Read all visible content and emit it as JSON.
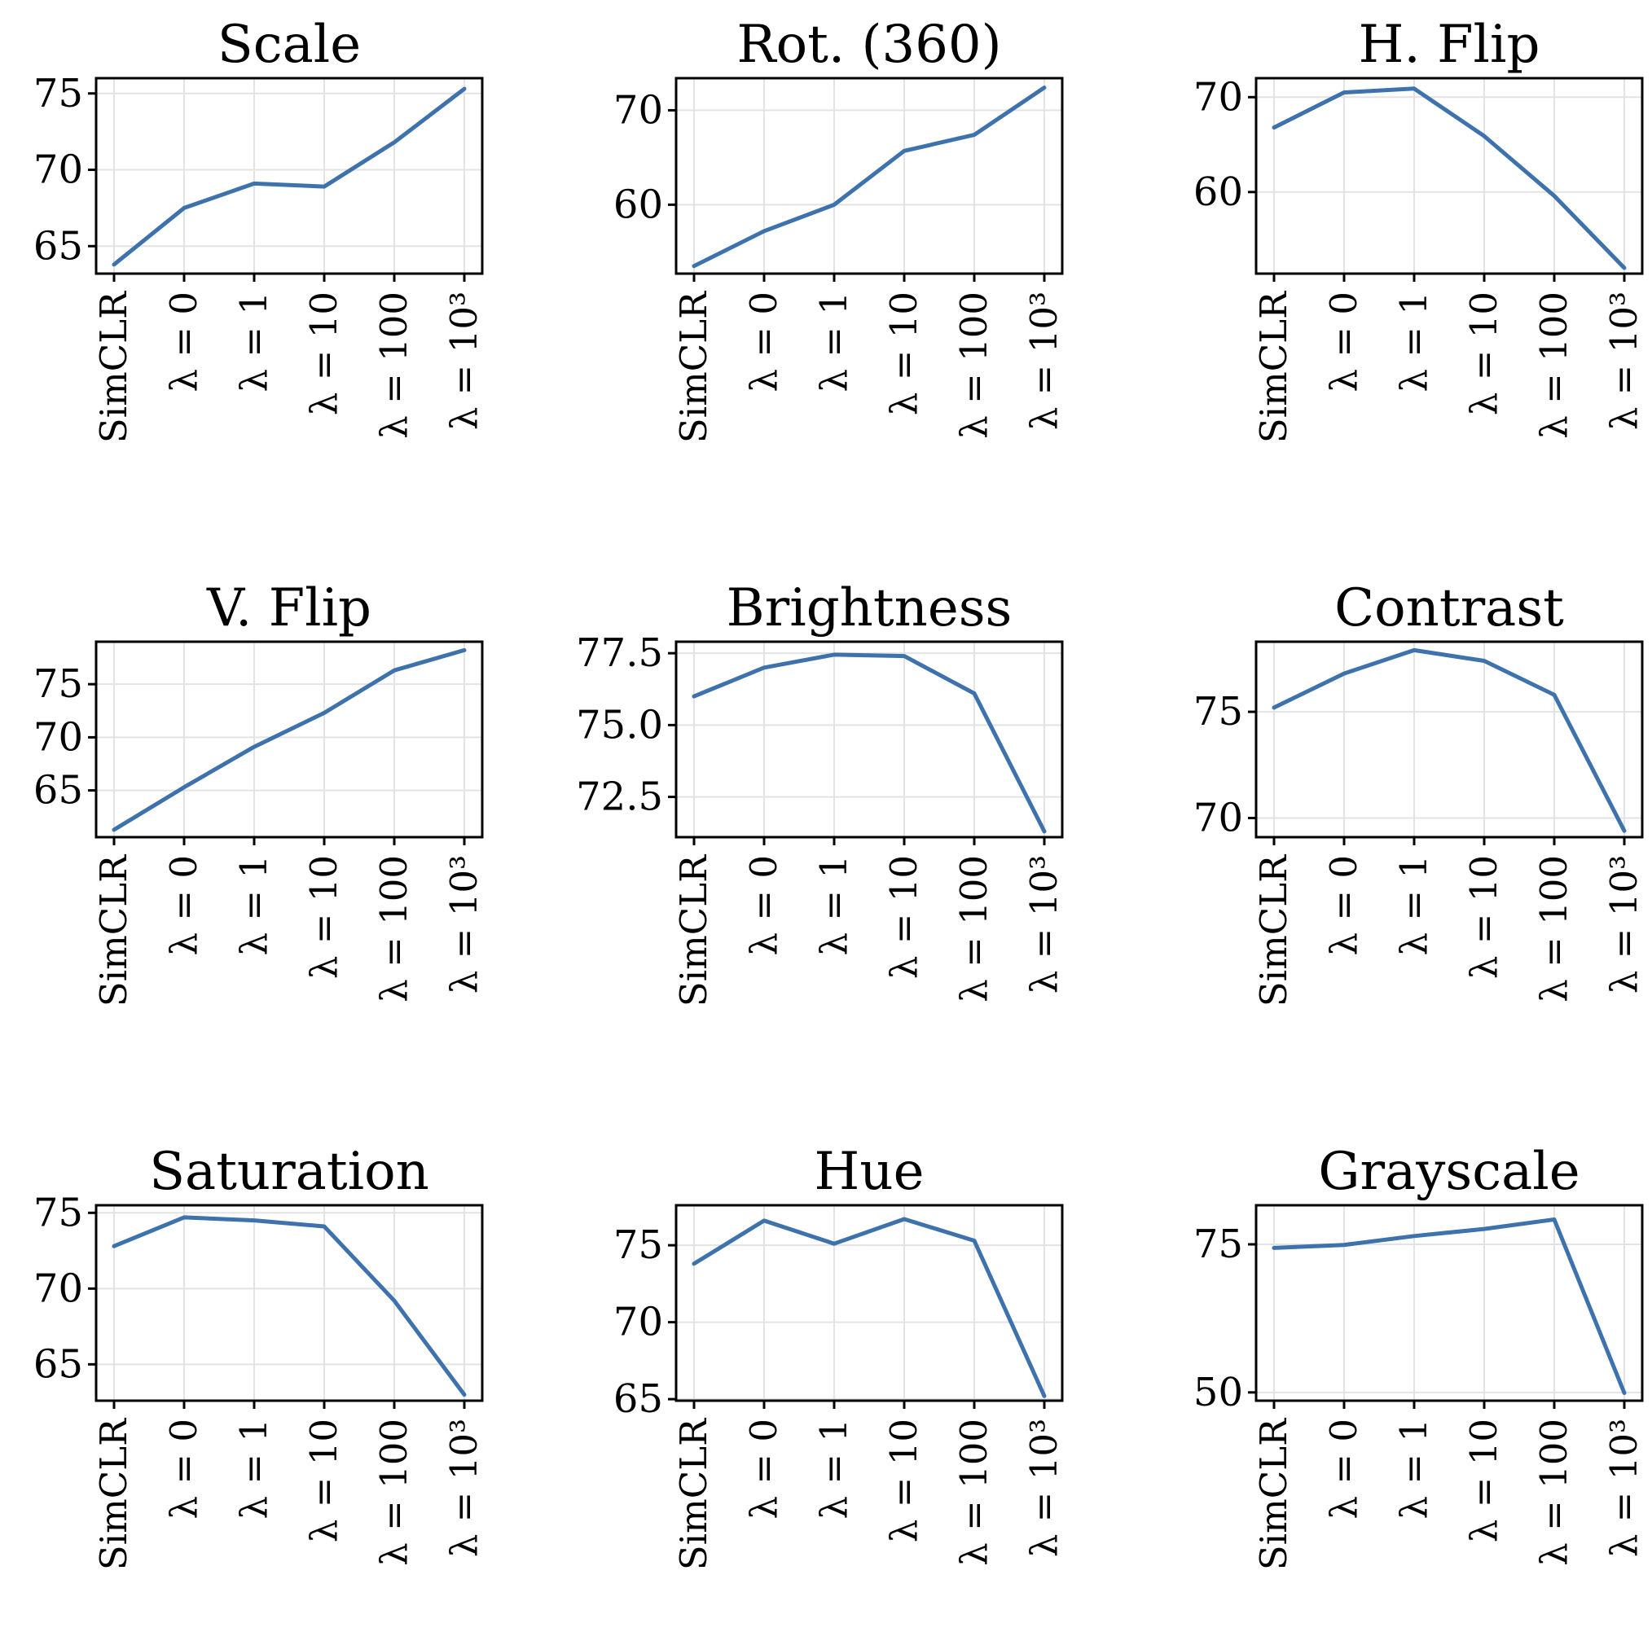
{
  "chart_data": [
    {
      "type": "line",
      "title": "Scale",
      "categories": [
        "SimCLR",
        "λ = 0",
        "λ = 1",
        "λ = 10",
        "λ = 100",
        "λ = 10³"
      ],
      "values": [
        63.8,
        67.5,
        69.1,
        68.9,
        71.8,
        75.3
      ],
      "ylim": [
        63.2,
        76.0
      ],
      "yticks": [
        65,
        70,
        75
      ],
      "ytick_labels": [
        "65",
        "70",
        "75"
      ],
      "grid": true
    },
    {
      "type": "line",
      "title": "Rot. (360)",
      "categories": [
        "SimCLR",
        "λ = 0",
        "λ = 1",
        "λ = 10",
        "λ = 100",
        "λ = 10³"
      ],
      "values": [
        53.5,
        57.2,
        60.0,
        65.7,
        67.4,
        72.4
      ],
      "ylim": [
        52.7,
        73.4
      ],
      "yticks": [
        60,
        70
      ],
      "ytick_labels": [
        "60",
        "70"
      ],
      "grid": true
    },
    {
      "type": "line",
      "title": "H. Flip",
      "categories": [
        "SimCLR",
        "λ = 0",
        "λ = 1",
        "λ = 10",
        "λ = 100",
        "λ = 10³"
      ],
      "values": [
        66.8,
        70.5,
        70.9,
        65.9,
        59.6,
        52.0
      ],
      "ylim": [
        51.4,
        72.0
      ],
      "yticks": [
        60,
        70
      ],
      "ytick_labels": [
        "60",
        "70"
      ],
      "grid": true
    },
    {
      "type": "line",
      "title": "V. Flip",
      "categories": [
        "SimCLR",
        "λ = 0",
        "λ = 1",
        "λ = 10",
        "λ = 100",
        "λ = 10³"
      ],
      "values": [
        61.3,
        65.3,
        69.1,
        72.3,
        76.3,
        78.2
      ],
      "ylim": [
        60.6,
        79.0
      ],
      "yticks": [
        65,
        70,
        75
      ],
      "ytick_labels": [
        "65",
        "70",
        "75"
      ],
      "grid": true
    },
    {
      "type": "line",
      "title": "Brightness",
      "categories": [
        "SimCLR",
        "λ = 0",
        "λ = 1",
        "λ = 10",
        "λ = 100",
        "λ = 10³"
      ],
      "values": [
        76.0,
        77.0,
        77.45,
        77.4,
        76.1,
        71.3
      ],
      "ylim": [
        71.1,
        77.9
      ],
      "yticks": [
        72.5,
        75.0,
        77.5
      ],
      "ytick_labels": [
        "72.5",
        "75.0",
        "77.5"
      ],
      "grid": true
    },
    {
      "type": "line",
      "title": "Contrast",
      "categories": [
        "SimCLR",
        "λ = 0",
        "λ = 1",
        "λ = 10",
        "λ = 100",
        "λ = 10³"
      ],
      "values": [
        75.2,
        76.8,
        77.9,
        77.4,
        75.8,
        69.4
      ],
      "ylim": [
        69.1,
        78.3
      ],
      "yticks": [
        70,
        75
      ],
      "ytick_labels": [
        "70",
        "75"
      ],
      "grid": true
    },
    {
      "type": "line",
      "title": "Saturation",
      "categories": [
        "SimCLR",
        "λ = 0",
        "λ = 1",
        "λ = 10",
        "λ = 100",
        "λ = 10³"
      ],
      "values": [
        72.8,
        74.7,
        74.5,
        74.1,
        69.2,
        63.0
      ],
      "ylim": [
        62.6,
        75.5
      ],
      "yticks": [
        65,
        70,
        75
      ],
      "ytick_labels": [
        "65",
        "70",
        "75"
      ],
      "grid": true
    },
    {
      "type": "line",
      "title": "Hue",
      "categories": [
        "SimCLR",
        "λ = 0",
        "λ = 1",
        "λ = 10",
        "λ = 100",
        "λ = 10³"
      ],
      "values": [
        73.8,
        76.6,
        75.1,
        76.7,
        75.3,
        65.2
      ],
      "ylim": [
        64.9,
        77.6
      ],
      "yticks": [
        65,
        70,
        75
      ],
      "ytick_labels": [
        "65",
        "70",
        "75"
      ],
      "grid": true
    },
    {
      "type": "line",
      "title": "Grayscale",
      "categories": [
        "SimCLR",
        "λ = 0",
        "λ = 1",
        "λ = 10",
        "λ = 100",
        "λ = 10³"
      ],
      "values": [
        74.4,
        74.9,
        76.4,
        77.6,
        79.2,
        49.9
      ],
      "ylim": [
        48.6,
        81.6
      ],
      "yticks": [
        50,
        75
      ],
      "ytick_labels": [
        "50",
        "75"
      ],
      "grid": true
    }
  ]
}
